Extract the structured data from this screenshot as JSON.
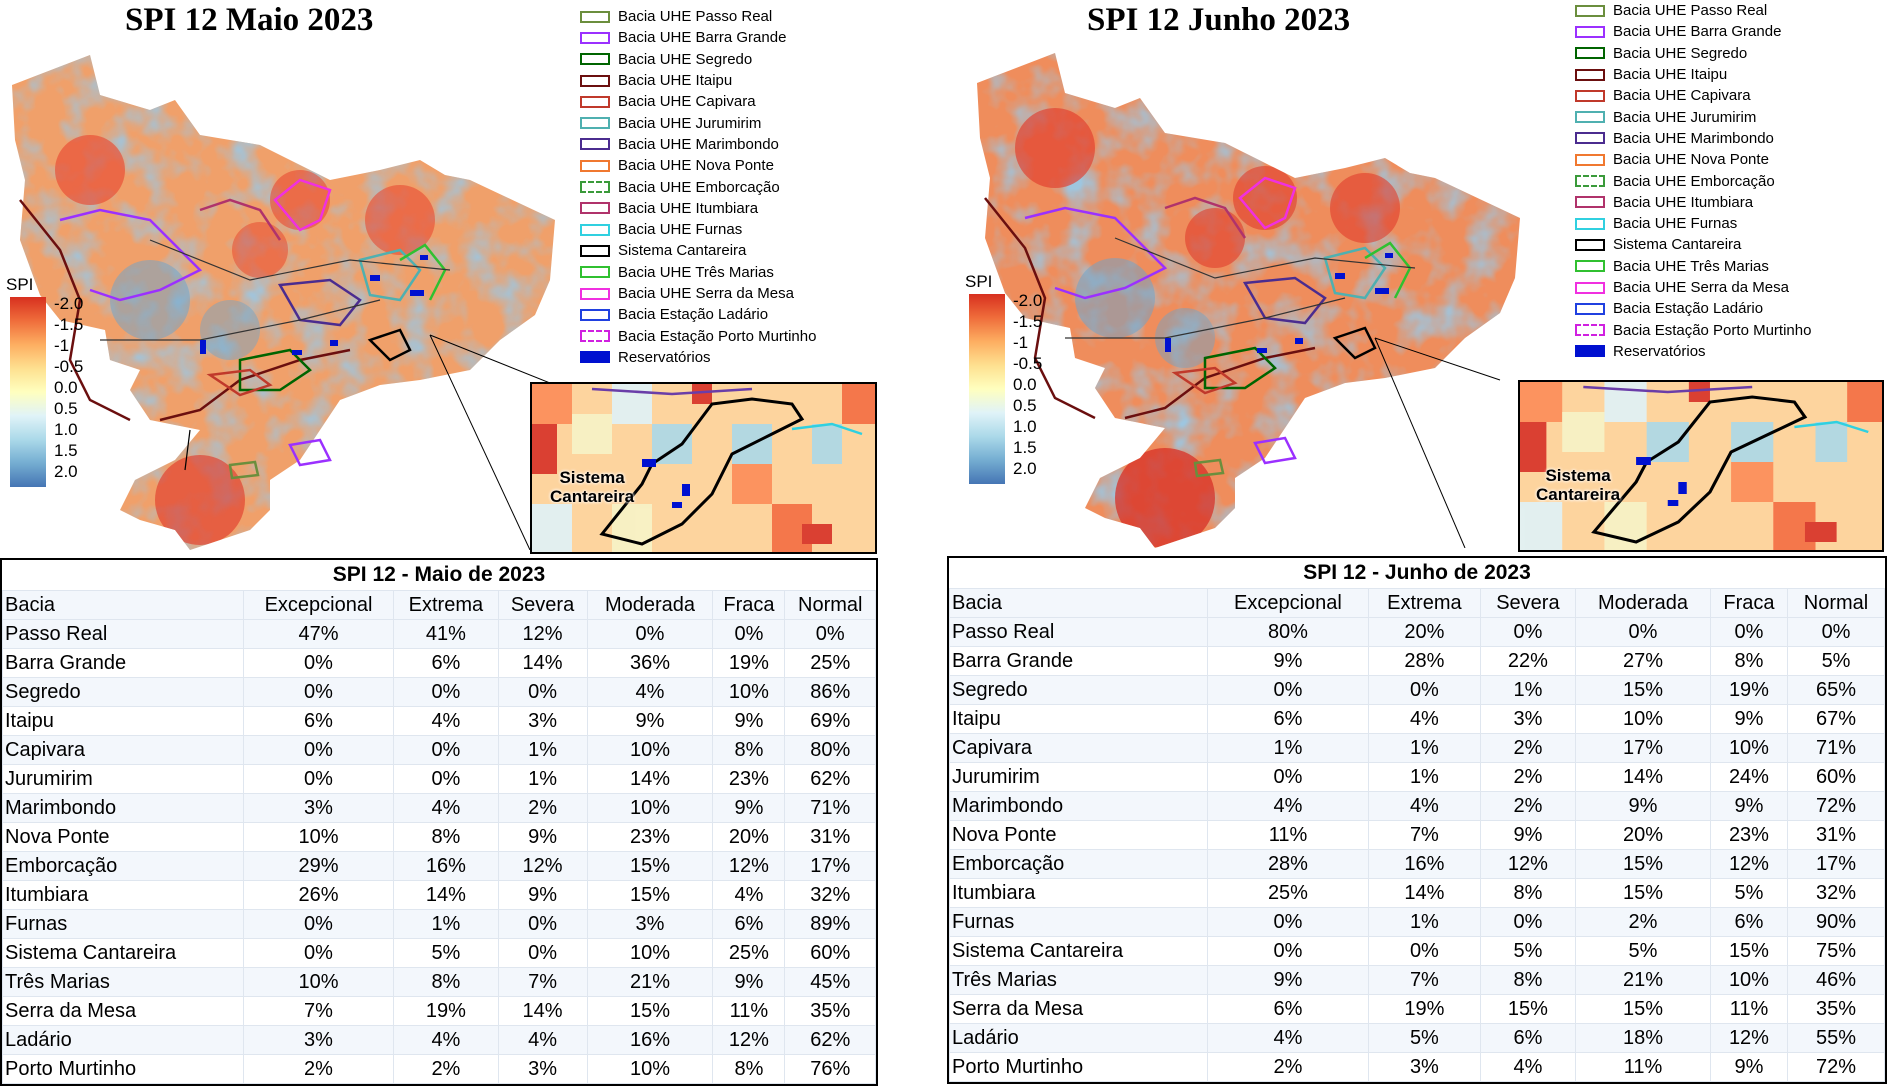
{
  "columns": [
    "Bacia",
    "Excepcional",
    "Extrema",
    "Severa",
    "Moderada",
    "Fraca",
    "Normal"
  ],
  "legend": [
    {
      "label": "Bacia UHE Passo Real",
      "color": "#6b8e3d",
      "style": "solid"
    },
    {
      "label": "Bacia UHE Barra Grande",
      "color": "#9b30ff",
      "style": "solid"
    },
    {
      "label": "Bacia UHE Segredo",
      "color": "#006400",
      "style": "solid"
    },
    {
      "label": "Bacia UHE Itaipu",
      "color": "#6b0f0f",
      "style": "solid"
    },
    {
      "label": "Bacia UHE Capivara",
      "color": "#c0392b",
      "style": "solid"
    },
    {
      "label": "Bacia UHE Jurumirim",
      "color": "#4fb0b0",
      "style": "solid"
    },
    {
      "label": "Bacia UHE Marimbondo",
      "color": "#4b2c8f",
      "style": "solid"
    },
    {
      "label": "Bacia UHE Nova Ponte",
      "color": "#f07830",
      "style": "solid"
    },
    {
      "label": "Bacia UHE Emborcação",
      "color": "#3a9a3a",
      "style": "dashed"
    },
    {
      "label": "Bacia UHE Itumbiara",
      "color": "#b0336b",
      "style": "solid"
    },
    {
      "label": "Bacia UHE Furnas",
      "color": "#30d0e0",
      "style": "solid"
    },
    {
      "label": "Sistema Cantareira",
      "color": "#000000",
      "style": "solid"
    },
    {
      "label": "Bacia UHE Três Marias",
      "color": "#30c030",
      "style": "solid"
    },
    {
      "label": "Bacia UHE Serra da Mesa",
      "color": "#f030e0",
      "style": "solid"
    },
    {
      "label": "Bacia Estação Ladário",
      "color": "#2040e0",
      "style": "solid"
    },
    {
      "label": "Bacia Estação Porto Murtinho",
      "color": "#d020e0",
      "style": "dashed"
    },
    {
      "label": "Reservatórios",
      "color": "#0010d0",
      "style": "filled"
    }
  ],
  "spi_scale": {
    "label": "SPI",
    "ticks": [
      "-2.0",
      "-1.5",
      "-1",
      "-0.5",
      "0.0",
      "0.5",
      "1.0",
      "1.5",
      "2.0"
    ]
  },
  "inset_label": "Sistema\nCantareira",
  "panels": [
    {
      "map_title": "SPI 12 Maio 2023",
      "table_title": "SPI 12 - Maio de 2023",
      "rows": [
        [
          "Passo Real",
          "47%",
          "41%",
          "12%",
          "0%",
          "0%",
          "0%"
        ],
        [
          "Barra Grande",
          "0%",
          "6%",
          "14%",
          "36%",
          "19%",
          "25%"
        ],
        [
          "Segredo",
          "0%",
          "0%",
          "0%",
          "4%",
          "10%",
          "86%"
        ],
        [
          "Itaipu",
          "6%",
          "4%",
          "3%",
          "9%",
          "9%",
          "69%"
        ],
        [
          "Capivara",
          "0%",
          "0%",
          "1%",
          "10%",
          "8%",
          "80%"
        ],
        [
          "Jurumirim",
          "0%",
          "0%",
          "1%",
          "14%",
          "23%",
          "62%"
        ],
        [
          "Marimbondo",
          "3%",
          "4%",
          "2%",
          "10%",
          "9%",
          "71%"
        ],
        [
          "Nova Ponte",
          "10%",
          "8%",
          "9%",
          "23%",
          "20%",
          "31%"
        ],
        [
          "Emborcação",
          "29%",
          "16%",
          "12%",
          "15%",
          "12%",
          "17%"
        ],
        [
          "Itumbiara",
          "26%",
          "14%",
          "9%",
          "15%",
          "4%",
          "32%"
        ],
        [
          "Furnas",
          "0%",
          "1%",
          "0%",
          "3%",
          "6%",
          "89%"
        ],
        [
          "Sistema Cantareira",
          "0%",
          "5%",
          "0%",
          "10%",
          "25%",
          "60%"
        ],
        [
          "Três Marias",
          "10%",
          "8%",
          "7%",
          "21%",
          "9%",
          "45%"
        ],
        [
          "Serra da Mesa",
          "7%",
          "19%",
          "14%",
          "15%",
          "11%",
          "35%"
        ],
        [
          "Ladário",
          "3%",
          "4%",
          "4%",
          "16%",
          "12%",
          "62%"
        ],
        [
          "Porto Murtinho",
          "2%",
          "2%",
          "3%",
          "10%",
          "8%",
          "76%"
        ]
      ]
    },
    {
      "map_title": "SPI 12 Junho 2023",
      "table_title": "SPI 12 - Junho de 2023",
      "rows": [
        [
          "Passo Real",
          "80%",
          "20%",
          "0%",
          "0%",
          "0%",
          "0%"
        ],
        [
          "Barra Grande",
          "9%",
          "28%",
          "22%",
          "27%",
          "8%",
          "5%"
        ],
        [
          "Segredo",
          "0%",
          "0%",
          "1%",
          "15%",
          "19%",
          "65%"
        ],
        [
          "Itaipu",
          "6%",
          "4%",
          "3%",
          "10%",
          "9%",
          "67%"
        ],
        [
          "Capivara",
          "1%",
          "1%",
          "2%",
          "17%",
          "10%",
          "71%"
        ],
        [
          "Jurumirim",
          "0%",
          "1%",
          "2%",
          "14%",
          "24%",
          "60%"
        ],
        [
          "Marimbondo",
          "4%",
          "4%",
          "2%",
          "9%",
          "9%",
          "72%"
        ],
        [
          "Nova Ponte",
          "11%",
          "7%",
          "9%",
          "20%",
          "23%",
          "31%"
        ],
        [
          "Emborcação",
          "28%",
          "16%",
          "12%",
          "15%",
          "12%",
          "17%"
        ],
        [
          "Itumbiara",
          "25%",
          "14%",
          "8%",
          "15%",
          "5%",
          "32%"
        ],
        [
          "Furnas",
          "0%",
          "1%",
          "0%",
          "2%",
          "6%",
          "90%"
        ],
        [
          "Sistema Cantareira",
          "0%",
          "0%",
          "5%",
          "5%",
          "15%",
          "75%"
        ],
        [
          "Três Marias",
          "9%",
          "7%",
          "8%",
          "21%",
          "10%",
          "46%"
        ],
        [
          "Serra da Mesa",
          "6%",
          "19%",
          "15%",
          "15%",
          "11%",
          "35%"
        ],
        [
          "Ladário",
          "4%",
          "5%",
          "6%",
          "18%",
          "12%",
          "55%"
        ],
        [
          "Porto Murtinho",
          "2%",
          "3%",
          "4%",
          "11%",
          "9%",
          "72%"
        ]
      ]
    }
  ]
}
